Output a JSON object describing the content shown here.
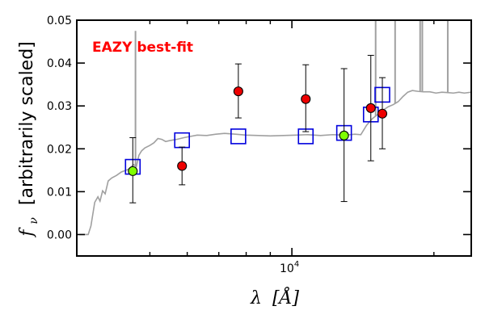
{
  "chart_data": {
    "type": "scatter",
    "annotation": "EAZY best-fit",
    "annotation_color": "#ff0000",
    "ylabel": "f_ν [arbitrarily scaled]",
    "ylabel_symbol": "f",
    "ylabel_subscript": "ν",
    "ylabel_unit": "[arbitrarily scaled]",
    "xlabel": "λ [Å]",
    "xlabel_symbol": "λ",
    "xlabel_unit": "[Å]",
    "x_scale": "log",
    "xlim": [
      3500,
      24000
    ],
    "ylim": [
      -0.005,
      0.05
    ],
    "x_major_tick": {
      "value": 10000,
      "base": "10",
      "exponent": "4"
    },
    "x_minor_ticks": [
      5000,
      6000,
      7000,
      8000,
      9000,
      20000
    ],
    "y_ticks": [
      {
        "value": 0.0,
        "label": "0.00"
      },
      {
        "value": 0.01,
        "label": "0.01"
      },
      {
        "value": 0.02,
        "label": "0.02"
      },
      {
        "value": 0.03,
        "label": "0.03"
      },
      {
        "value": 0.04,
        "label": "0.04"
      },
      {
        "value": 0.05,
        "label": "0.05"
      }
    ],
    "grid": false,
    "colors": {
      "template": "#a0a0a0",
      "model_box": "#0000dd",
      "observed": "#ee0000",
      "observed_highlight": "#7fff00",
      "errorbar": "#000000"
    },
    "template_spectrum": [
      [
        3550,
        0.0
      ],
      [
        3700,
        0.0
      ],
      [
        3750,
        0.002
      ],
      [
        3820,
        0.0075
      ],
      [
        3880,
        0.0088
      ],
      [
        3920,
        0.0078
      ],
      [
        3970,
        0.0102
      ],
      [
        4020,
        0.0095
      ],
      [
        4080,
        0.0125
      ],
      [
        4150,
        0.0132
      ],
      [
        4250,
        0.0138
      ],
      [
        4350,
        0.0146
      ],
      [
        4500,
        0.0152
      ],
      [
        4620,
        0.0163
      ],
      [
        4680,
        0.0158
      ],
      [
        4740,
        0.0185
      ],
      [
        4800,
        0.0195
      ],
      [
        4880,
        0.0202
      ],
      [
        5000,
        0.0208
      ],
      [
        5100,
        0.0214
      ],
      [
        5200,
        0.0224
      ],
      [
        5300,
        0.0222
      ],
      [
        5400,
        0.0217
      ],
      [
        5500,
        0.0219
      ],
      [
        5700,
        0.0222
      ],
      [
        5900,
        0.0226
      ],
      [
        6100,
        0.0229
      ],
      [
        6300,
        0.0232
      ],
      [
        6600,
        0.0231
      ],
      [
        6900,
        0.0234
      ],
      [
        7200,
        0.0236
      ],
      [
        7600,
        0.0234
      ],
      [
        8000,
        0.0232
      ],
      [
        8500,
        0.0231
      ],
      [
        9000,
        0.023
      ],
      [
        9600,
        0.0231
      ],
      [
        10200,
        0.0232
      ],
      [
        10800,
        0.0233
      ],
      [
        11500,
        0.0231
      ],
      [
        12200,
        0.0233
      ],
      [
        13000,
        0.0232
      ],
      [
        13600,
        0.0234
      ],
      [
        14000,
        0.0233
      ],
      [
        14400,
        0.0255
      ],
      [
        14800,
        0.027
      ],
      [
        15200,
        0.028
      ],
      [
        15600,
        0.029
      ],
      [
        16000,
        0.0298
      ],
      [
        16400,
        0.0303
      ],
      [
        16800,
        0.031
      ],
      [
        17200,
        0.0322
      ],
      [
        17600,
        0.0332
      ],
      [
        18000,
        0.0336
      ],
      [
        18500,
        0.0334
      ],
      [
        19000,
        0.0333
      ],
      [
        19600,
        0.0333
      ],
      [
        20200,
        0.033
      ],
      [
        20800,
        0.0332
      ],
      [
        21400,
        0.0331
      ],
      [
        22000,
        0.033
      ],
      [
        22600,
        0.0332
      ],
      [
        23200,
        0.033
      ],
      [
        24000,
        0.0332
      ]
    ],
    "template_emission_lines": [
      {
        "x": 4661,
        "y": 0.0475
      },
      {
        "x": 15050,
        "y": 0.05
      },
      {
        "x": 16550,
        "y": 0.05
      },
      {
        "x": 18700,
        "y": 0.05
      },
      {
        "x": 18900,
        "y": 0.05
      },
      {
        "x": 21400,
        "y": 0.05
      }
    ],
    "model_fluxes": [
      {
        "x": 4600,
        "y": 0.0158
      },
      {
        "x": 5850,
        "y": 0.022
      },
      {
        "x": 7700,
        "y": 0.0229
      },
      {
        "x": 10700,
        "y": 0.0229
      },
      {
        "x": 12900,
        "y": 0.0237
      },
      {
        "x": 14700,
        "y": 0.028
      },
      {
        "x": 15550,
        "y": 0.0326
      }
    ],
    "observed_fluxes": [
      {
        "x": 4600,
        "y": 0.0148,
        "yerr_low": 0.0074,
        "yerr_high": 0.0078,
        "highlight": true
      },
      {
        "x": 5850,
        "y": 0.016,
        "yerr_low": 0.0044,
        "yerr_high": 0.0044,
        "highlight": false
      },
      {
        "x": 7700,
        "y": 0.0334,
        "yerr_low": 0.0062,
        "yerr_high": 0.0064,
        "highlight": false
      },
      {
        "x": 10700,
        "y": 0.0316,
        "yerr_low": 0.0076,
        "yerr_high": 0.008,
        "highlight": false
      },
      {
        "x": 12900,
        "y": 0.0231,
        "yerr_low": 0.0154,
        "yerr_high": 0.0156,
        "highlight": true
      },
      {
        "x": 14700,
        "y": 0.0295,
        "yerr_low": 0.0123,
        "yerr_high": 0.0123,
        "highlight": false
      },
      {
        "x": 15550,
        "y": 0.0282,
        "yerr_low": 0.0082,
        "yerr_high": 0.0084,
        "highlight": false
      }
    ]
  }
}
